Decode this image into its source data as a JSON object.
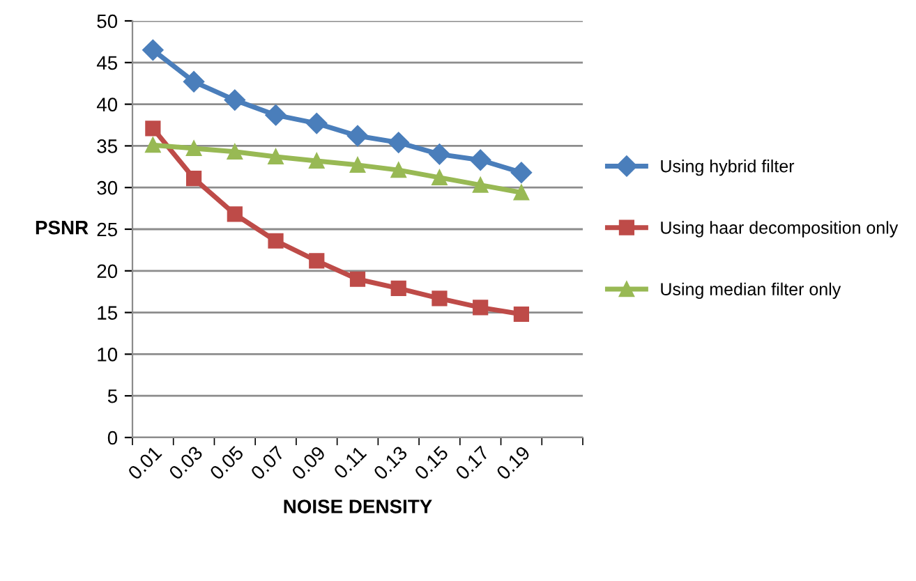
{
  "chart_data": {
    "type": "line",
    "xlabel": "NOISE DENSITY",
    "ylabel": "PSNR",
    "categories": [
      "0.01",
      "0.03",
      "0.05",
      "0.07",
      "0.09",
      "0.11",
      "0.13",
      "0.15",
      "0.17",
      "0.19",
      null
    ],
    "series": [
      {
        "name": "Using hybrid filter",
        "color": "#4a7ebb",
        "marker": "diamond",
        "values": [
          46.5,
          42.7,
          40.5,
          38.7,
          37.7,
          36.2,
          35.4,
          34.0,
          33.3,
          31.8,
          null
        ]
      },
      {
        "name": "Using haar decomposition only",
        "color": "#be4b48",
        "marker": "square",
        "values": [
          37.1,
          31.1,
          26.8,
          23.6,
          21.2,
          19.0,
          17.9,
          16.7,
          15.6,
          14.8,
          null
        ]
      },
      {
        "name": "Using median filter only",
        "color": "#98b954",
        "marker": "triangle",
        "values": [
          35.1,
          34.7,
          34.3,
          33.7,
          33.2,
          32.7,
          32.1,
          31.2,
          30.3,
          29.4,
          null
        ]
      }
    ],
    "ylim": [
      0,
      50
    ],
    "yticks": [
      0,
      5,
      10,
      15,
      20,
      25,
      30,
      35,
      40,
      45,
      50
    ],
    "grid": "y",
    "legend": "right",
    "line_style": "solid"
  }
}
